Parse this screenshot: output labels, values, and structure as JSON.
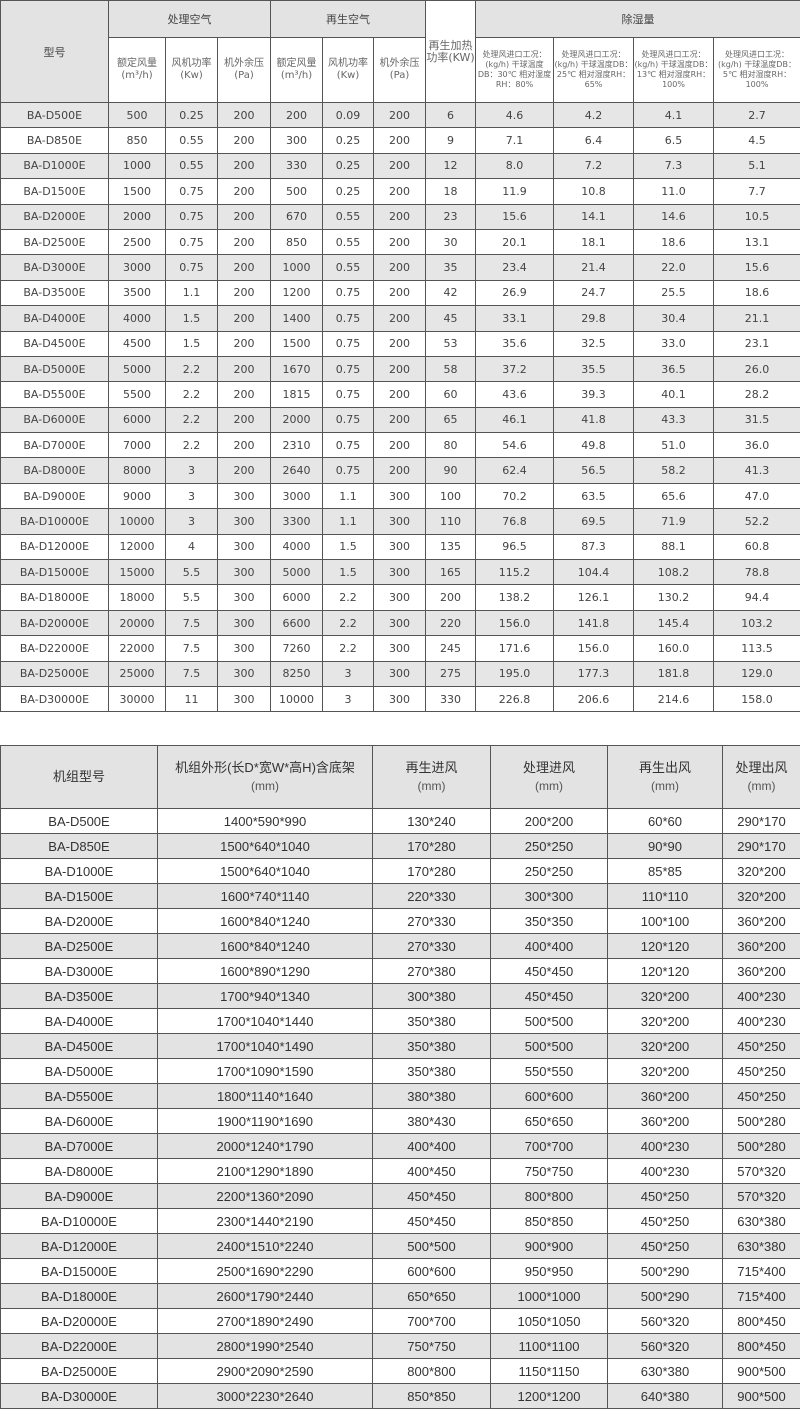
{
  "table1": {
    "headers": {
      "model": "型号",
      "process_air": "处理空气",
      "regen_air": "再生空气",
      "regen_heat": "再生加热功率(KW)",
      "dehumid": "除湿量",
      "airflow": "额定风量(m³/h)",
      "fan_power": "风机功率(Kw)",
      "ext_pressure": "机外余压(Pa)",
      "conditions": [
        "处理风进口工况：(kg/h) 干球温度DB：30℃ 相对湿度RH：80%",
        "处理风进口工况：(kg/h) 干球温度DB：25℃ 相对湿度RH：65%",
        "处理风进口工况：(kg/h) 干球温度DB：13℃ 相对湿度RH：100%",
        "处理风进口工况：(kg/h) 干球温度DB：5℃ 相对湿度RH：100%"
      ]
    },
    "rows": [
      [
        "BA-D500E",
        "500",
        "0.25",
        "200",
        "200",
        "0.09",
        "200",
        "6",
        "4.6",
        "4.2",
        "4.1",
        "2.7"
      ],
      [
        "BA-D850E",
        "850",
        "0.55",
        "200",
        "300",
        "0.25",
        "200",
        "9",
        "7.1",
        "6.4",
        "6.5",
        "4.5"
      ],
      [
        "BA-D1000E",
        "1000",
        "0.55",
        "200",
        "330",
        "0.25",
        "200",
        "12",
        "8.0",
        "7.2",
        "7.3",
        "5.1"
      ],
      [
        "BA-D1500E",
        "1500",
        "0.75",
        "200",
        "500",
        "0.25",
        "200",
        "18",
        "11.9",
        "10.8",
        "11.0",
        "7.7"
      ],
      [
        "BA-D2000E",
        "2000",
        "0.75",
        "200",
        "670",
        "0.55",
        "200",
        "23",
        "15.6",
        "14.1",
        "14.6",
        "10.5"
      ],
      [
        "BA-D2500E",
        "2500",
        "0.75",
        "200",
        "850",
        "0.55",
        "200",
        "30",
        "20.1",
        "18.1",
        "18.6",
        "13.1"
      ],
      [
        "BA-D3000E",
        "3000",
        "0.75",
        "200",
        "1000",
        "0.55",
        "200",
        "35",
        "23.4",
        "21.4",
        "22.0",
        "15.6"
      ],
      [
        "BA-D3500E",
        "3500",
        "1.1",
        "200",
        "1200",
        "0.75",
        "200",
        "42",
        "26.9",
        "24.7",
        "25.5",
        "18.6"
      ],
      [
        "BA-D4000E",
        "4000",
        "1.5",
        "200",
        "1400",
        "0.75",
        "200",
        "45",
        "33.1",
        "29.8",
        "30.4",
        "21.1"
      ],
      [
        "BA-D4500E",
        "4500",
        "1.5",
        "200",
        "1500",
        "0.75",
        "200",
        "53",
        "35.6",
        "32.5",
        "33.0",
        "23.1"
      ],
      [
        "BA-D5000E",
        "5000",
        "2.2",
        "200",
        "1670",
        "0.75",
        "200",
        "58",
        "37.2",
        "35.5",
        "36.5",
        "26.0"
      ],
      [
        "BA-D5500E",
        "5500",
        "2.2",
        "200",
        "1815",
        "0.75",
        "200",
        "60",
        "43.6",
        "39.3",
        "40.1",
        "28.2"
      ],
      [
        "BA-D6000E",
        "6000",
        "2.2",
        "200",
        "2000",
        "0.75",
        "200",
        "65",
        "46.1",
        "41.8",
        "43.3",
        "31.5"
      ],
      [
        "BA-D7000E",
        "7000",
        "2.2",
        "200",
        "2310",
        "0.75",
        "200",
        "80",
        "54.6",
        "49.8",
        "51.0",
        "36.0"
      ],
      [
        "BA-D8000E",
        "8000",
        "3",
        "200",
        "2640",
        "0.75",
        "200",
        "90",
        "62.4",
        "56.5",
        "58.2",
        "41.3"
      ],
      [
        "BA-D9000E",
        "9000",
        "3",
        "300",
        "3000",
        "1.1",
        "300",
        "100",
        "70.2",
        "63.5",
        "65.6",
        "47.0"
      ],
      [
        "BA-D10000E",
        "10000",
        "3",
        "300",
        "3300",
        "1.1",
        "300",
        "110",
        "76.8",
        "69.5",
        "71.9",
        "52.2"
      ],
      [
        "BA-D12000E",
        "12000",
        "4",
        "300",
        "4000",
        "1.5",
        "300",
        "135",
        "96.5",
        "87.3",
        "88.1",
        "60.8"
      ],
      [
        "BA-D15000E",
        "15000",
        "5.5",
        "300",
        "5000",
        "1.5",
        "300",
        "165",
        "115.2",
        "104.4",
        "108.2",
        "78.8"
      ],
      [
        "BA-D18000E",
        "18000",
        "5.5",
        "300",
        "6000",
        "2.2",
        "300",
        "200",
        "138.2",
        "126.1",
        "130.2",
        "94.4"
      ],
      [
        "BA-D20000E",
        "20000",
        "7.5",
        "300",
        "6600",
        "2.2",
        "300",
        "220",
        "156.0",
        "141.8",
        "145.4",
        "103.2"
      ],
      [
        "BA-D22000E",
        "22000",
        "7.5",
        "300",
        "7260",
        "2.2",
        "300",
        "245",
        "171.6",
        "156.0",
        "160.0",
        "113.5"
      ],
      [
        "BA-D25000E",
        "25000",
        "7.5",
        "300",
        "8250",
        "3",
        "300",
        "275",
        "195.0",
        "177.3",
        "181.8",
        "129.0"
      ],
      [
        "BA-D30000E",
        "30000",
        "11",
        "300",
        "10000",
        "3",
        "300",
        "330",
        "226.8",
        "206.6",
        "214.6",
        "158.0"
      ]
    ]
  },
  "table2": {
    "headers": [
      {
        "label": "机组型号",
        "unit": ""
      },
      {
        "label": "机组外形(长D*宽W*高H)含底架",
        "unit": "(mm)"
      },
      {
        "label": "再生进风",
        "unit": "(mm)"
      },
      {
        "label": "处理进风",
        "unit": "(mm)"
      },
      {
        "label": "再生出风",
        "unit": "(mm)"
      },
      {
        "label": "处理出风",
        "unit": "(mm)"
      }
    ],
    "rows": [
      [
        "BA-D500E",
        "1400*590*990",
        "130*240",
        "200*200",
        "60*60",
        "290*170"
      ],
      [
        "BA-D850E",
        "1500*640*1040",
        "170*280",
        "250*250",
        "90*90",
        "290*170"
      ],
      [
        "BA-D1000E",
        "1500*640*1040",
        "170*280",
        "250*250",
        "85*85",
        "320*200"
      ],
      [
        "BA-D1500E",
        "1600*740*1140",
        "220*330",
        "300*300",
        "110*110",
        "320*200"
      ],
      [
        "BA-D2000E",
        "1600*840*1240",
        "270*330",
        "350*350",
        "100*100",
        "360*200"
      ],
      [
        "BA-D2500E",
        "1600*840*1240",
        "270*330",
        "400*400",
        "120*120",
        "360*200"
      ],
      [
        "BA-D3000E",
        "1600*890*1290",
        "270*380",
        "450*450",
        "120*120",
        "360*200"
      ],
      [
        "BA-D3500E",
        "1700*940*1340",
        "300*380",
        "450*450",
        "320*200",
        "400*230"
      ],
      [
        "BA-D4000E",
        "1700*1040*1440",
        "350*380",
        "500*500",
        "320*200",
        "400*230"
      ],
      [
        "BA-D4500E",
        "1700*1040*1490",
        "350*380",
        "500*500",
        "320*200",
        "450*250"
      ],
      [
        "BA-D5000E",
        "1700*1090*1590",
        "350*380",
        "550*550",
        "320*200",
        "450*250"
      ],
      [
        "BA-D5500E",
        "1800*1140*1640",
        "380*380",
        "600*600",
        "360*200",
        "450*250"
      ],
      [
        "BA-D6000E",
        "1900*1190*1690",
        "380*430",
        "650*650",
        "360*200",
        "500*280"
      ],
      [
        "BA-D7000E",
        "2000*1240*1790",
        "400*400",
        "700*700",
        "400*230",
        "500*280"
      ],
      [
        "BA-D8000E",
        "2100*1290*1890",
        "400*450",
        "750*750",
        "400*230",
        "570*320"
      ],
      [
        "BA-D9000E",
        "2200*1360*2090",
        "450*450",
        "800*800",
        "450*250",
        "570*320"
      ],
      [
        "BA-D10000E",
        "2300*1440*2190",
        "450*450",
        "850*850",
        "450*250",
        "630*380"
      ],
      [
        "BA-D12000E",
        "2400*1510*2240",
        "500*500",
        "900*900",
        "450*250",
        "630*380"
      ],
      [
        "BA-D15000E",
        "2500*1690*2290",
        "600*600",
        "950*950",
        "500*290",
        "715*400"
      ],
      [
        "BA-D18000E",
        "2600*1790*2440",
        "650*650",
        "1000*1000",
        "500*290",
        "715*400"
      ],
      [
        "BA-D20000E",
        "2700*1890*2490",
        "700*700",
        "1050*1050",
        "560*320",
        "800*450"
      ],
      [
        "BA-D22000E",
        "2800*1990*2540",
        "750*750",
        "1100*1100",
        "560*320",
        "800*450"
      ],
      [
        "BA-D25000E",
        "2900*2090*2590",
        "800*800",
        "1150*1150",
        "630*380",
        "900*500"
      ],
      [
        "BA-D30000E",
        "3000*2230*2640",
        "850*850",
        "1200*1200",
        "640*380",
        "900*500"
      ]
    ]
  }
}
